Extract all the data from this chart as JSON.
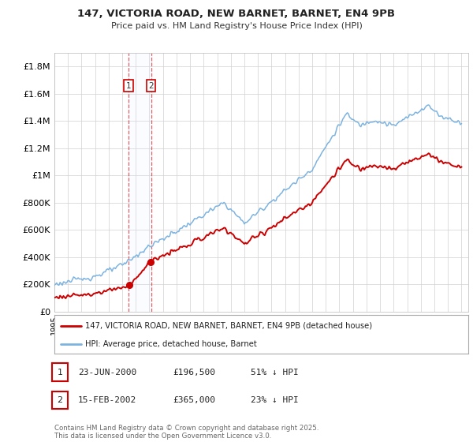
{
  "title_line1": "147, VICTORIA ROAD, NEW BARNET, BARNET, EN4 9PB",
  "title_line2": "Price paid vs. HM Land Registry's House Price Index (HPI)",
  "ylabel_ticks": [
    "£0",
    "£200K",
    "£400K",
    "£600K",
    "£800K",
    "£1M",
    "£1.2M",
    "£1.4M",
    "£1.6M",
    "£1.8M"
  ],
  "ylim": [
    0,
    1900000
  ],
  "ytick_values": [
    0,
    200000,
    400000,
    600000,
    800000,
    1000000,
    1200000,
    1400000,
    1600000,
    1800000
  ],
  "hpi_color": "#7db3e0",
  "price_color": "#cc0000",
  "sale1_date_num": 2000.46,
  "sale1_price": 196500,
  "sale1_label": "1",
  "sale2_date_num": 2002.12,
  "sale2_price": 365000,
  "sale2_label": "2",
  "legend_line1": "147, VICTORIA ROAD, NEW BARNET, BARNET, EN4 9PB (detached house)",
  "legend_line2": "HPI: Average price, detached house, Barnet",
  "table_row1": [
    "1",
    "23-JUN-2000",
    "£196,500",
    "51% ↓ HPI"
  ],
  "table_row2": [
    "2",
    "15-FEB-2002",
    "£365,000",
    "23% ↓ HPI"
  ],
  "footnote": "Contains HM Land Registry data © Crown copyright and database right 2025.\nThis data is licensed under the Open Government Licence v3.0.",
  "background_color": "#ffffff",
  "grid_color": "#d0d0d0",
  "span_color": "#ddeeff",
  "xlim_left": 1995.0,
  "xlim_right": 2025.5
}
